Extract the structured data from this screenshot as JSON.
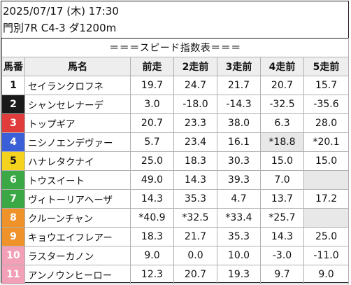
{
  "header": {
    "date_line": "2025/07/17 (木) 17:30",
    "race_line": "門別7R C4-3 ダ1200m"
  },
  "table": {
    "title": "＝＝＝スピード指数表＝＝＝",
    "columns": [
      "馬番",
      "馬名",
      "前走",
      "2走前",
      "3走前",
      "4走前",
      "5走前"
    ],
    "rows": [
      {
        "num": "1",
        "num_bg": "#ffffff",
        "num_color": "#111111",
        "name": "セイランクロフネ",
        "vals": [
          "19.7",
          "24.7",
          "21.7",
          "20.7",
          "15.7"
        ],
        "shaded": []
      },
      {
        "num": "2",
        "num_bg": "#1a1a1a",
        "num_color": "#ffffff",
        "name": "シャンセレナーデ",
        "vals": [
          "3.0",
          "-18.0",
          "-14.3",
          "-32.5",
          "-35.6"
        ],
        "shaded": []
      },
      {
        "num": "3",
        "num_bg": "#e03c3c",
        "num_color": "#ffffff",
        "name": "トップギア",
        "vals": [
          "20.7",
          "23.3",
          "38.0",
          "6.3",
          "28.0"
        ],
        "shaded": []
      },
      {
        "num": "4",
        "num_bg": "#3b5fd6",
        "num_color": "#ffffff",
        "name": "ニシノエンデヴァー",
        "vals": [
          "5.7",
          "23.4",
          "16.1",
          "*18.8",
          "*20.1"
        ],
        "shaded": [
          3
        ]
      },
      {
        "num": "5",
        "num_bg": "#f5d21e",
        "num_color": "#111111",
        "name": "ハナレタクナイ",
        "vals": [
          "25.0",
          "18.3",
          "30.3",
          "15.0",
          "15.0"
        ],
        "shaded": []
      },
      {
        "num": "6",
        "num_bg": "#3aa845",
        "num_color": "#ffffff",
        "name": "トウスイート",
        "vals": [
          "49.0",
          "14.3",
          "39.3",
          "7.0",
          ""
        ],
        "shaded": [
          4
        ]
      },
      {
        "num": "7",
        "num_bg": "#3aa845",
        "num_color": "#ffffff",
        "name": "ヴィトーリアヘーザ",
        "vals": [
          "14.3",
          "35.3",
          "4.7",
          "13.7",
          "17.2"
        ],
        "shaded": []
      },
      {
        "num": "8",
        "num_bg": "#f0922a",
        "num_color": "#ffffff",
        "name": "クルーンチャン",
        "vals": [
          "*40.9",
          "*32.5",
          "*33.4",
          "*25.7",
          ""
        ],
        "shaded": [
          4
        ]
      },
      {
        "num": "9",
        "num_bg": "#f0922a",
        "num_color": "#ffffff",
        "name": "キョウエイフレアー",
        "vals": [
          "18.3",
          "21.7",
          "35.3",
          "14.3",
          "25.0"
        ],
        "shaded": []
      },
      {
        "num": "10",
        "num_bg": "#f2a0b8",
        "num_color": "#ffffff",
        "name": "ラスターカノン",
        "vals": [
          "9.0",
          "0.0",
          "10.0",
          "-3.0",
          "-11.0"
        ],
        "shaded": []
      },
      {
        "num": "11",
        "num_bg": "#f2a0b8",
        "num_color": "#ffffff",
        "name": "アンノウンヒーロー",
        "vals": [
          "12.3",
          "20.7",
          "19.3",
          "9.7",
          "9.0"
        ],
        "shaded": []
      }
    ]
  }
}
